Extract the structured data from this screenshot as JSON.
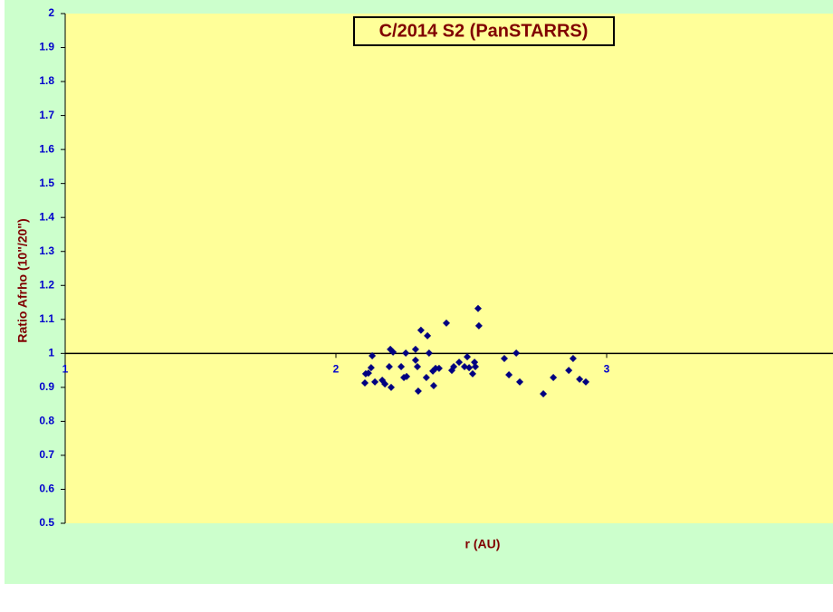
{
  "chart_data": {
    "type": "scatter",
    "title": "C/2014 S2 (PanSTARRS)",
    "x_label": "r (AU)",
    "y_label": "Ratio Afrho (10\"/20\")",
    "xlim": [
      1,
      3.836
    ],
    "xticks": [
      1,
      2,
      3
    ],
    "ylim": [
      0.5,
      2
    ],
    "yticks": [
      0.5,
      0.6,
      0.7,
      0.8,
      0.9,
      1,
      1.1,
      1.2,
      1.3,
      1.4,
      1.5,
      1.6,
      1.7,
      1.8,
      1.9,
      2
    ],
    "x_axis_crosses_at": 1,
    "series": [
      {
        "color": "#000080",
        "x": [
          2.107,
          2.11,
          2.12,
          2.13,
          2.134,
          2.144,
          2.171,
          2.181,
          2.197,
          2.201,
          2.204,
          2.211,
          2.241,
          2.251,
          2.258,
          2.261,
          2.294,
          2.294,
          2.301,
          2.304,
          2.314,
          2.334,
          2.338,
          2.344,
          2.358,
          2.361,
          2.368,
          2.381,
          2.408,
          2.428,
          2.435,
          2.455,
          2.475,
          2.485,
          2.492,
          2.505,
          2.512,
          2.515,
          2.525,
          2.528,
          2.622,
          2.639,
          2.666,
          2.679,
          2.766,
          2.803,
          2.86,
          2.876,
          2.9,
          2.923
        ],
        "values": [
          0.913,
          0.94,
          0.942,
          0.958,
          0.993,
          0.916,
          0.921,
          0.91,
          0.961,
          1.012,
          0.9,
          1.004,
          0.961,
          0.929,
          1.001,
          0.932,
          1.012,
          0.98,
          0.961,
          0.889,
          1.068,
          0.929,
          1.052,
          1.001,
          0.948,
          0.905,
          0.956,
          0.956,
          1.089,
          0.95,
          0.961,
          0.974,
          0.961,
          0.99,
          0.958,
          0.94,
          0.974,
          0.961,
          1.132,
          1.081,
          0.985,
          0.937,
          1.001,
          0.916,
          0.881,
          0.929,
          0.95,
          0.985,
          0.924,
          0.916
        ]
      }
    ]
  }
}
